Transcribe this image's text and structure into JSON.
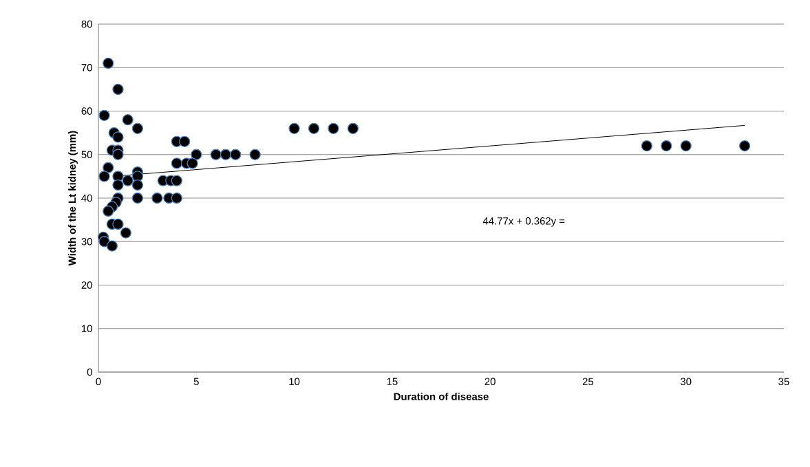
{
  "chart_data": {
    "type": "scatter",
    "xlabel": "Duration of disease",
    "ylabel": "Width of the Lt kidney (mm)",
    "xlim": [
      0,
      35
    ],
    "xticks": [
      0,
      5,
      10,
      15,
      20,
      25,
      30,
      35
    ],
    "ylim": [
      0,
      80
    ],
    "yticks": [
      0,
      10,
      20,
      30,
      40,
      50,
      60,
      70,
      80
    ],
    "grid": "y",
    "marker": "circle",
    "annotations": [
      "44.77x + 0.362y ="
    ],
    "series": [
      {
        "color": "#000000",
        "x": [
          0.5,
          1,
          0.3,
          1.5,
          2,
          0.8,
          1,
          0.7,
          1,
          1,
          0.5,
          0.3,
          1,
          1.5,
          2,
          2,
          2,
          1,
          2,
          1,
          3,
          3.6,
          4,
          3.3,
          3.7,
          4,
          4,
          4,
          4.4,
          5,
          4.5,
          4.8,
          6,
          6.5,
          7,
          8,
          0.9,
          0.7,
          0.5,
          0.7,
          1,
          1.4,
          0.25,
          0.3,
          0.7,
          10,
          11,
          12,
          13,
          28,
          29,
          30,
          33
        ],
        "values": [
          71,
          65,
          59,
          58,
          56,
          55,
          54,
          51,
          51,
          50,
          47,
          45,
          45,
          44,
          46,
          45,
          43,
          43,
          40,
          40,
          40,
          40,
          40,
          44,
          44,
          44,
          48,
          53,
          53,
          50,
          48,
          48,
          50,
          50,
          50,
          50,
          39,
          38,
          37,
          34,
          34,
          32,
          31,
          30,
          29,
          56,
          56,
          56,
          56,
          52,
          52,
          52,
          52
        ]
      },
      {
        "type": "line",
        "color": "#000000",
        "marker": "none",
        "x": [
          1,
          33
        ],
        "values": [
          45.1,
          56.7
        ]
      }
    ]
  }
}
